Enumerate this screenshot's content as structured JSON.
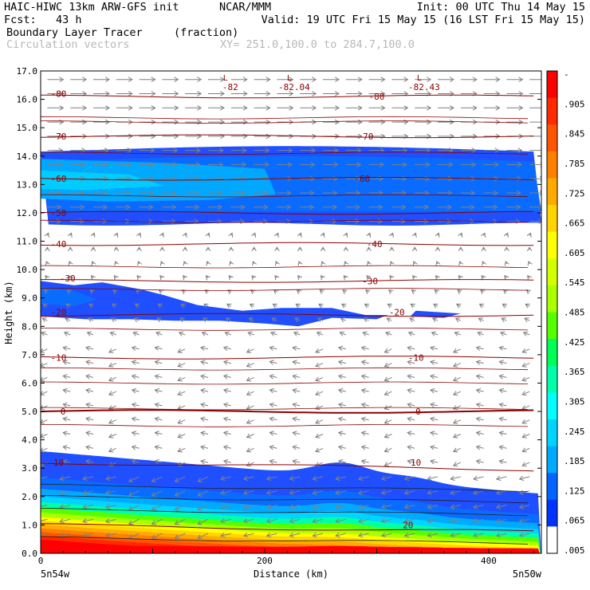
{
  "header": {
    "title_left": "HAIC-HIWC 13km ARW-GFS init",
    "org": "NCAR/MMM",
    "init": "Init: 00 UTC Thu 14 May 15",
    "fcst": "Fcst:   43 h",
    "valid": "Valid: 19 UTC Fri 15 May 15 (16 LST Fri 15 May 15)",
    "field_name": "Boundary Layer Tracer",
    "field_units": "(fraction)",
    "vector_label": "Circulation vectors",
    "xy_range": "XY= 251.0,100.0 to 284.7,100.0"
  },
  "chart_data": {
    "type": "heatmap",
    "title": "Boundary Layer Tracer",
    "xlabel": "Distance (km)",
    "ylabel": "Height (km)",
    "xlim": [
      0,
      447
    ],
    "ylim": [
      0,
      17
    ],
    "x_ticks": [
      0,
      200,
      400
    ],
    "y_ticks": [
      "0.0",
      "1.0",
      "2.0",
      "3.0",
      "4.0",
      "5.0",
      "6.0",
      "7.0",
      "8.0",
      "9.0",
      "10.0",
      "11.0",
      "12.0",
      "13.0",
      "14.0",
      "15.0",
      "16.0",
      "17.0"
    ],
    "x_end_labels": {
      "left": "5n54w",
      "right": "5n50w"
    },
    "colorbar": {
      "labels": [
        "-",
        ".905",
        ".845",
        ".785",
        ".725",
        ".665",
        ".605",
        ".545",
        ".485",
        ".425",
        ".365",
        ".305",
        ".245",
        ".185",
        ".125",
        ".065",
        ".005"
      ],
      "colors": [
        "#ff0000",
        "#ff2a00",
        "#ff5500",
        "#ff7f00",
        "#ffaa00",
        "#ffd400",
        "#ffff00",
        "#d4ff00",
        "#aaff00",
        "#55ff00",
        "#00ff55",
        "#00ffaa",
        "#00ffff",
        "#00d4ff",
        "#00aaff",
        "#0066ff",
        "#0033ff",
        "#ffffff"
      ]
    },
    "tracer_regions": [
      {
        "name": "upper layer",
        "x": [
          0,
          447
        ],
        "z_bottom": [
          11.6,
          11.6
        ],
        "z_top": [
          14.15,
          14.35
        ],
        "max_fraction": 0.125
      },
      {
        "name": "mid-level tongue",
        "x": [
          0,
          375
        ],
        "z_bottom": [
          8.2,
          8.45
        ],
        "z_top": [
          9.6,
          8.6
        ],
        "max_fraction": 0.065
      },
      {
        "name": "boundary layer",
        "x": [
          0,
          447
        ],
        "z_top": [
          3.6,
          2.1
        ],
        "max_fraction": 0.905
      }
    ],
    "temperature_contours": [
      {
        "value": -80,
        "label": "-80",
        "z": 16.1
      },
      {
        "value": -70,
        "label": "-70",
        "z": 14.7
      },
      {
        "value": -60,
        "label": "-60",
        "z": 13.2
      },
      {
        "value": -50,
        "label": "-50",
        "z": 12.0
      },
      {
        "value": -40,
        "label": "-40",
        "z": 10.9
      },
      {
        "value": -30,
        "label": "-30",
        "z": 9.6
      },
      {
        "value": -20,
        "label": "-20",
        "z": 8.4
      },
      {
        "value": -10,
        "label": "-10",
        "z": 6.9
      },
      {
        "value": 0,
        "label": "0",
        "z": 5.0
      },
      {
        "value": 10,
        "label": "10",
        "z": 3.2
      },
      {
        "value": 20,
        "label": "20",
        "z": 1.0
      }
    ],
    "minimum_markers": [
      {
        "letter": "L",
        "value": "-82",
        "x": 165,
        "z": 16.6
      },
      {
        "letter": "L",
        "value": "-82.04",
        "x": 222,
        "z": 16.6
      },
      {
        "letter": "L",
        "value": "-82.43",
        "x": 338,
        "z": 16.6
      }
    ],
    "contour_labels": [
      {
        "text": "-80",
        "x": 16,
        "z": 16.2
      },
      {
        "text": "-80",
        "x": 300,
        "z": 16.1
      },
      {
        "text": "-70",
        "x": 16,
        "z": 14.7
      },
      {
        "text": "-70",
        "x": 290,
        "z": 14.7
      },
      {
        "text": "-60",
        "x": 16,
        "z": 13.2
      },
      {
        "text": "-60",
        "x": 287,
        "z": 13.2
      },
      {
        "text": "-50",
        "x": 16,
        "z": 12.0
      },
      {
        "text": "-40",
        "x": 16,
        "z": 10.9
      },
      {
        "text": "-40",
        "x": 298,
        "z": 10.9
      },
      {
        "text": "-30",
        "x": 24,
        "z": 9.7
      },
      {
        "text": "-30",
        "x": 294,
        "z": 9.6
      },
      {
        "text": "-20",
        "x": 16,
        "z": 8.5
      },
      {
        "text": "-20",
        "x": 318,
        "z": 8.5
      },
      {
        "text": "-10",
        "x": 16,
        "z": 6.9
      },
      {
        "text": "-10",
        "x": 335,
        "z": 6.9
      },
      {
        "text": "0",
        "x": 20,
        "z": 5.0
      },
      {
        "text": "0",
        "x": 337,
        "z": 5.0
      },
      {
        "text": "10",
        "x": 16,
        "z": 3.2
      },
      {
        "text": "10",
        "x": 335,
        "z": 3.2
      },
      {
        "text": "20",
        "x": 328,
        "z": 1.0
      }
    ],
    "vectors": {
      "field": "circulation",
      "upper_flow": "eastward",
      "lower_flow": "westward"
    }
  }
}
